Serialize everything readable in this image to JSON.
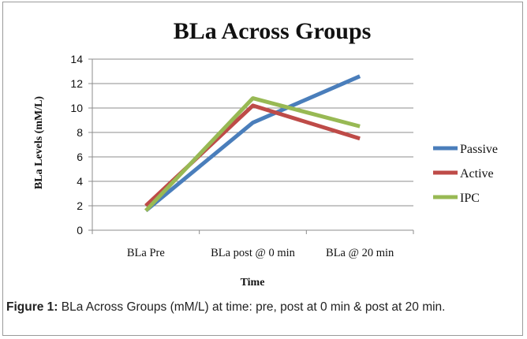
{
  "chart_data": {
    "type": "line",
    "title": "BLa Across Groups",
    "xlabel": "Time",
    "ylabel": "BLa Levels (mM/L)",
    "categories": [
      "BLa Pre",
      "BLa post @ 0 min",
      "BLa @ 20 min"
    ],
    "ylim": [
      0,
      14
    ],
    "yticks": [
      0,
      2,
      4,
      6,
      8,
      10,
      12,
      14
    ],
    "grid": true,
    "legend_position": "right",
    "series": [
      {
        "name": "Passive",
        "color": "#4a7ebb",
        "values": [
          1.6,
          8.8,
          12.6
        ]
      },
      {
        "name": "Active",
        "color": "#be4b48",
        "values": [
          2.0,
          10.2,
          7.5
        ]
      },
      {
        "name": "IPC",
        "color": "#98b954",
        "values": [
          1.6,
          10.8,
          8.5
        ]
      }
    ]
  },
  "caption": {
    "label": "Figure 1:",
    "text": " BLa Across Groups (mM/L) at time: pre, post at 0 min & post at 20 min."
  }
}
